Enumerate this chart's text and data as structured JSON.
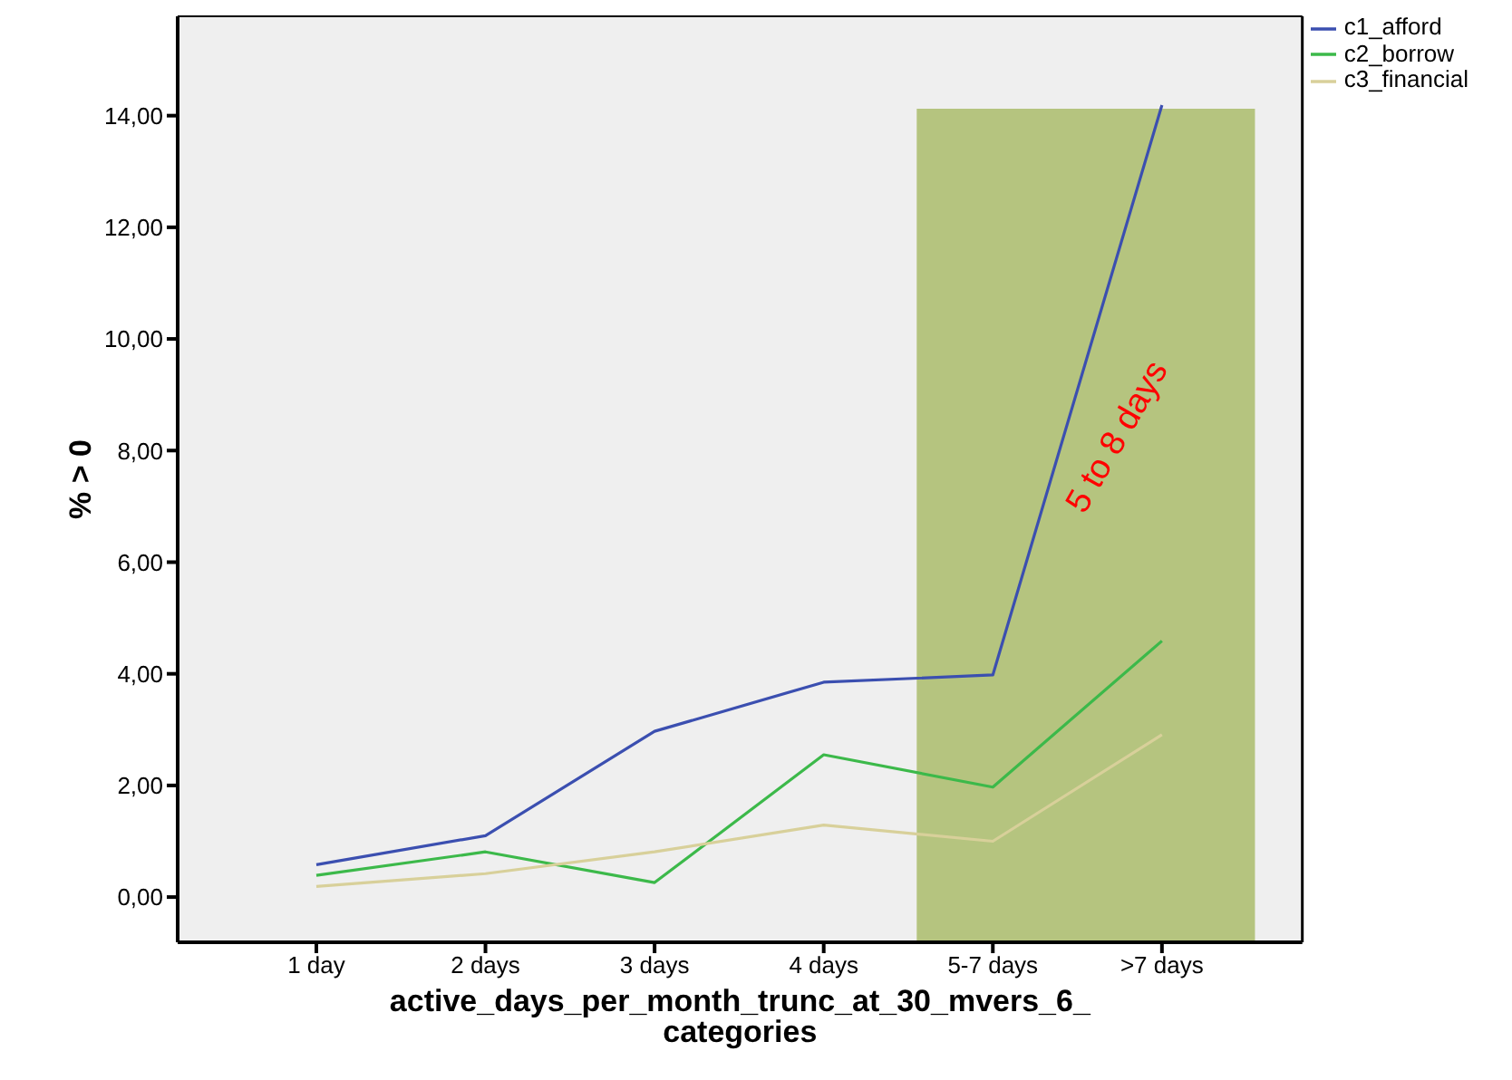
{
  "chart_data": {
    "type": "line",
    "categories": [
      "1 day",
      "2 days",
      "3 days",
      "4 days",
      "5-7 days",
      ">7 days"
    ],
    "series": [
      {
        "name": "c1_afford",
        "color": "#3b4fb0",
        "values": [
          0.58,
          1.1,
          2.97,
          3.85,
          3.98,
          14.19
        ]
      },
      {
        "name": "c2_borrow",
        "color": "#3cb94a",
        "values": [
          0.39,
          0.81,
          0.26,
          2.55,
          1.97,
          4.59
        ]
      },
      {
        "name": "c3_financial",
        "color": "#d8d09a",
        "values": [
          0.19,
          0.42,
          0.81,
          1.29,
          1.0,
          2.91
        ]
      }
    ],
    "xlabel": "active_days_per_month_trunc_at_30_mvers_6_categories",
    "ylabel": "% > 0",
    "ylim": [
      -0.81,
      15.78
    ],
    "yticks": [
      {
        "value": 0,
        "label": "0,00"
      },
      {
        "value": 2,
        "label": "2,00"
      },
      {
        "value": 4,
        "label": "4,00"
      },
      {
        "value": 6,
        "label": "6,00"
      },
      {
        "value": 8,
        "label": "8,00"
      },
      {
        "value": 10,
        "label": "10,00"
      },
      {
        "value": 12,
        "label": "12,00"
      },
      {
        "value": 14,
        "label": "14,00"
      }
    ],
    "bands": [
      {
        "axis": "x",
        "from": "5-7 days",
        "to": ">7 days",
        "label": "5 to 8 days",
        "color": "#b5c47f"
      }
    ],
    "grid": false,
    "legend": "top right",
    "marker": "none",
    "line_style": "solid"
  }
}
